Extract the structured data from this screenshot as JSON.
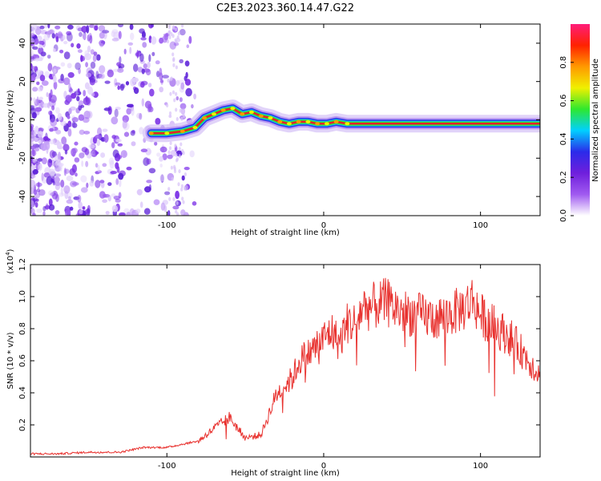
{
  "title": "C2E3.2023.360.14.47.G22",
  "colors": {
    "snr_line": "#e8322f",
    "axis": "#000000",
    "noise_purple": "#7a2ee6",
    "track_red": "#e8202a",
    "track_green": "#2ee82e",
    "track_blue": "#2c39e6"
  },
  "chart_data": [
    {
      "type": "heatmap",
      "title": "C2E3.2023.360.14.47.G22",
      "xlabel": "Height of straight line (km)",
      "ylabel": "Frequency (Hz)",
      "xlim": [
        -187,
        138
      ],
      "ylim": [
        -50,
        50
      ],
      "x_ticks": [
        "-100",
        "0",
        "100"
      ],
      "y_ticks": [
        "-40",
        "-20",
        "0",
        "20",
        "40"
      ],
      "grid": false,
      "colorbar": {
        "label": "Normalized spectral amplitude",
        "range": [
          0,
          1
        ],
        "ticks": [
          "0.0",
          "0.2",
          "0.4",
          "0.6",
          "0.8"
        ],
        "colors": [
          "#ffffff",
          "#a05af0",
          "#6f1fdc",
          "#2b2bea",
          "#00d0ff",
          "#2ee82e",
          "#f0f000",
          "#ff9900",
          "#ff2200",
          "#ff1d7a"
        ]
      },
      "track": {
        "x": [
          -110,
          -100,
          -90,
          -82,
          -76,
          -70,
          -64,
          -58,
          -52,
          -46,
          -40,
          -34,
          -28,
          -22,
          -16,
          -10,
          -4,
          2,
          8,
          15,
          25,
          40,
          60,
          80,
          100,
          120,
          138
        ],
        "y": [
          -7,
          -7,
          -6,
          -4,
          1,
          3,
          5,
          6,
          3,
          4,
          2,
          1,
          -1,
          -2,
          -1,
          -1,
          -2,
          -2,
          -1,
          -2,
          -2,
          -2,
          -2,
          -2,
          -2,
          -2,
          -2
        ]
      }
    },
    {
      "type": "line",
      "xlabel": "Height of straight line (km)",
      "ylabel": "SNR (10 * v/v)",
      "y_multiplier": "(x10",
      "y_multiplier_exp": "4",
      "y_multiplier_close": ")",
      "xlim": [
        -187,
        138
      ],
      "ylim": [
        0.0,
        1.2
      ],
      "x_ticks": [
        "-100",
        "0",
        "100"
      ],
      "y_ticks": [
        "0.2",
        "0.4",
        "0.6",
        "0.8",
        "1.0",
        "1.2"
      ],
      "grid": false,
      "series": [
        {
          "x": [
            -187,
            -170,
            -150,
            -130,
            -115,
            -100,
            -90,
            -80,
            -70,
            -60,
            -50,
            -40,
            -30,
            -20,
            -15,
            -10,
            -5,
            0,
            5,
            10,
            15,
            20,
            25,
            30,
            40,
            50,
            60,
            70,
            80,
            90,
            95,
            100,
            110,
            120,
            130,
            138
          ],
          "y": [
            0.02,
            0.02,
            0.03,
            0.03,
            0.06,
            0.06,
            0.08,
            0.1,
            0.18,
            0.25,
            0.12,
            0.14,
            0.4,
            0.5,
            0.62,
            0.65,
            0.7,
            0.75,
            0.8,
            0.72,
            0.85,
            0.85,
            0.95,
            0.95,
            0.98,
            0.92,
            0.9,
            0.88,
            0.9,
            0.95,
            1.0,
            0.9,
            0.82,
            0.75,
            0.62,
            0.52
          ]
        }
      ]
    }
  ]
}
